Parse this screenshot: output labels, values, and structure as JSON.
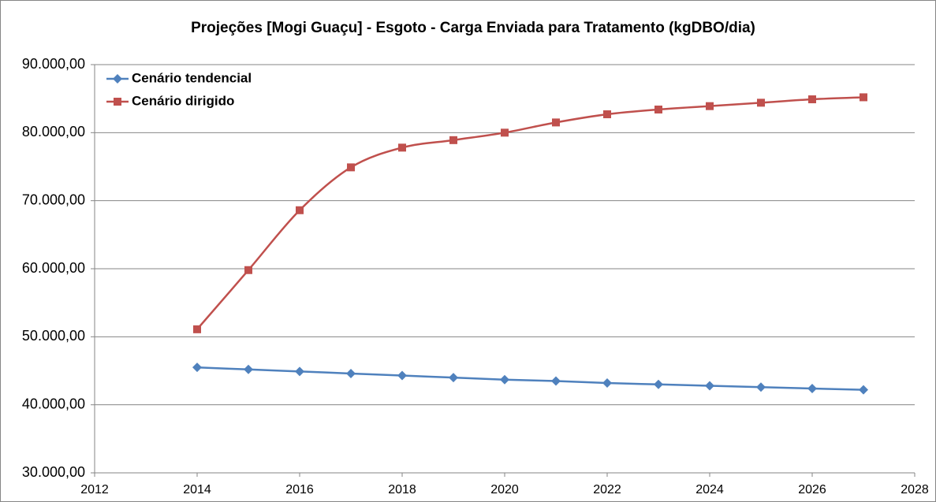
{
  "chart_data": {
    "type": "line",
    "title": "Projeções [Mogi Guaçu] - Esgoto - Carga Enviada para Tratamento (kgDBO/dia)",
    "x": [
      2014,
      2015,
      2016,
      2017,
      2018,
      2019,
      2020,
      2021,
      2022,
      2023,
      2024,
      2025,
      2026,
      2027
    ],
    "series": [
      {
        "name": "Cenário tendencial",
        "color": "#4f81bd",
        "marker": "diamond",
        "smooth": true,
        "values": [
          45500,
          45200,
          44900,
          44600,
          44300,
          44000,
          43700,
          43500,
          43200,
          43000,
          42800,
          42600,
          42400,
          42200
        ]
      },
      {
        "name": "Cenário dirigido",
        "color": "#c0504d",
        "marker": "square",
        "smooth": true,
        "values": [
          51100,
          59800,
          68600,
          74900,
          77800,
          78900,
          80000,
          81500,
          82700,
          83400,
          83900,
          84400,
          84900,
          85200
        ]
      }
    ],
    "xlim": [
      2012,
      2028
    ],
    "xticks": [
      2012,
      2014,
      2016,
      2018,
      2020,
      2022,
      2024,
      2026,
      2028
    ],
    "ylim": [
      30000,
      90000
    ],
    "yticks": [
      {
        "value": 30000,
        "label": "30.000,00"
      },
      {
        "value": 40000,
        "label": "40.000,00"
      },
      {
        "value": 50000,
        "label": "50.000,00"
      },
      {
        "value": 60000,
        "label": "60.000,00"
      },
      {
        "value": 70000,
        "label": "70.000,00"
      },
      {
        "value": 80000,
        "label": "80.000,00"
      },
      {
        "value": 90000,
        "label": "90.000,00"
      }
    ],
    "grid": true,
    "legend": "top-left"
  }
}
